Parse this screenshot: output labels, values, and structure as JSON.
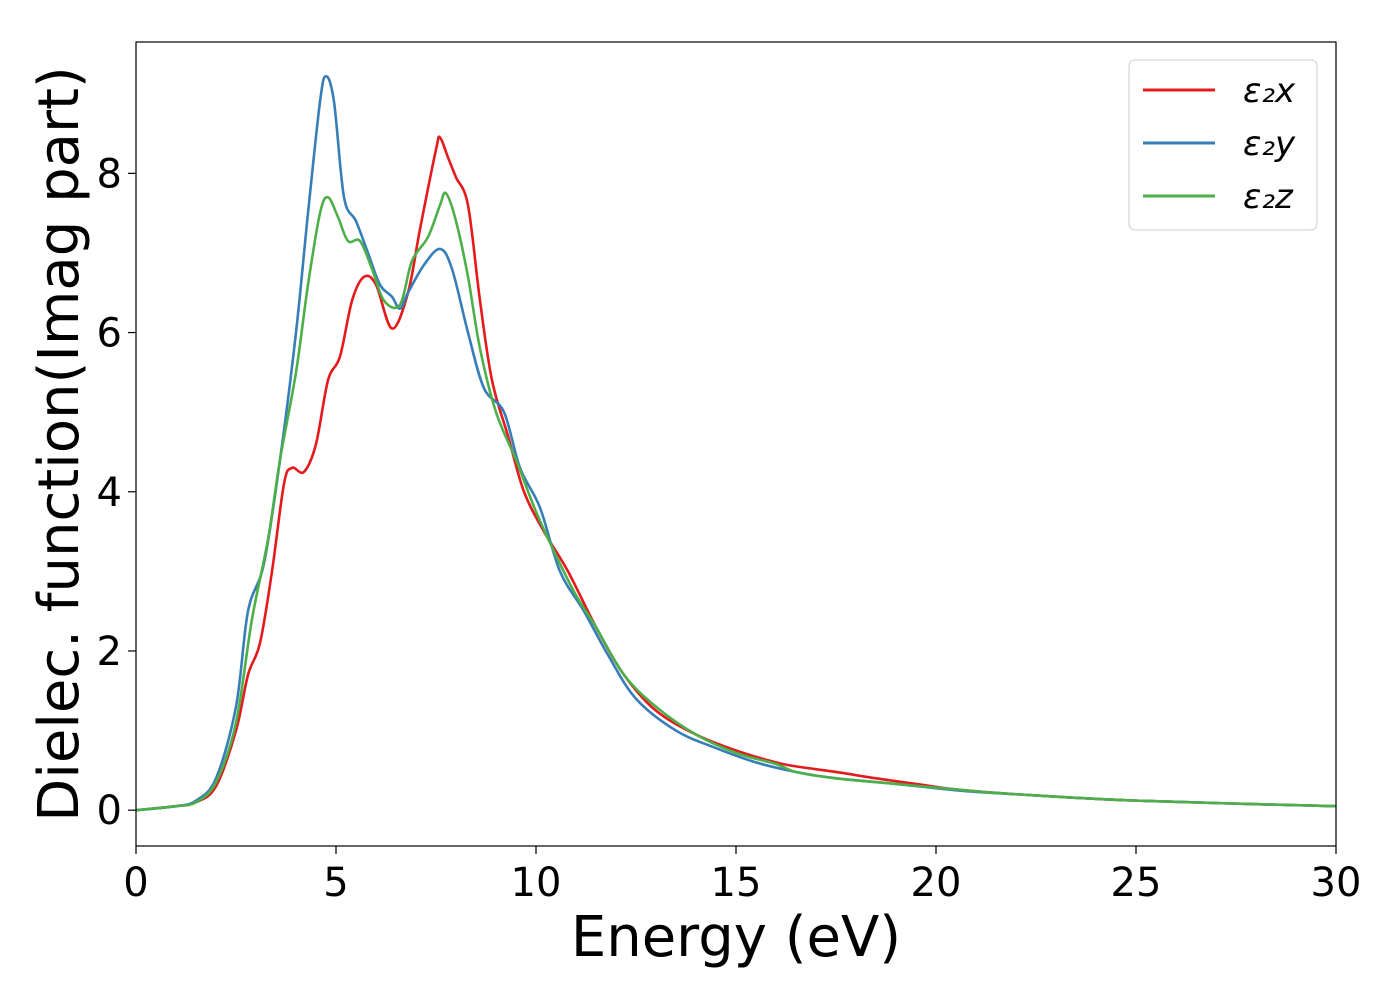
{
  "chart_data": {
    "type": "line",
    "xlabel": "Energy (eV)",
    "ylabel": "Dielec. function(Imag part)",
    "xlim": [
      0,
      30
    ],
    "ylim": [
      -0.45,
      9.65
    ],
    "xticks": [
      0,
      5,
      10,
      15,
      20,
      25,
      30
    ],
    "yticks": [
      0,
      2,
      4,
      6,
      8
    ],
    "grid": false,
    "legend_position": "top-right",
    "series": [
      {
        "name": "ε₂x",
        "color": "#e41a1c",
        "points": [
          [
            0,
            0
          ],
          [
            1,
            0.05
          ],
          [
            1.5,
            0.1
          ],
          [
            2,
            0.3
          ],
          [
            2.5,
            1.0
          ],
          [
            2.8,
            1.7
          ],
          [
            3.1,
            2.1
          ],
          [
            3.4,
            3.0
          ],
          [
            3.7,
            4.1
          ],
          [
            3.9,
            4.3
          ],
          [
            4.2,
            4.25
          ],
          [
            4.5,
            4.6
          ],
          [
            4.8,
            5.4
          ],
          [
            5.1,
            5.7
          ],
          [
            5.4,
            6.4
          ],
          [
            5.7,
            6.7
          ],
          [
            6.0,
            6.6
          ],
          [
            6.4,
            6.05
          ],
          [
            6.8,
            6.5
          ],
          [
            7.1,
            7.3
          ],
          [
            7.5,
            8.3
          ],
          [
            7.6,
            8.45
          ],
          [
            7.8,
            8.2
          ],
          [
            8.0,
            7.95
          ],
          [
            8.3,
            7.6
          ],
          [
            8.6,
            6.4
          ],
          [
            8.9,
            5.4
          ],
          [
            9.3,
            4.7
          ],
          [
            9.7,
            4.0
          ],
          [
            10.2,
            3.5
          ],
          [
            10.8,
            3.0
          ],
          [
            11.5,
            2.3
          ],
          [
            12.2,
            1.7
          ],
          [
            13,
            1.25
          ],
          [
            14,
            0.95
          ],
          [
            15,
            0.75
          ],
          [
            16,
            0.6
          ],
          [
            16.5,
            0.55
          ],
          [
            17.5,
            0.48
          ],
          [
            18.5,
            0.4
          ],
          [
            19.5,
            0.33
          ],
          [
            20.5,
            0.26
          ],
          [
            22,
            0.2
          ],
          [
            25,
            0.12
          ],
          [
            30,
            0.05
          ]
        ]
      },
      {
        "name": "ε₂y",
        "color": "#377eb8",
        "points": [
          [
            0,
            0
          ],
          [
            1,
            0.05
          ],
          [
            1.5,
            0.12
          ],
          [
            2,
            0.4
          ],
          [
            2.5,
            1.3
          ],
          [
            2.8,
            2.5
          ],
          [
            3.2,
            3.1
          ],
          [
            3.6,
            4.4
          ],
          [
            4.0,
            6.0
          ],
          [
            4.3,
            7.5
          ],
          [
            4.6,
            8.9
          ],
          [
            4.75,
            9.22
          ],
          [
            4.95,
            8.9
          ],
          [
            5.2,
            7.7
          ],
          [
            5.5,
            7.4
          ],
          [
            5.8,
            7.0
          ],
          [
            6.1,
            6.6
          ],
          [
            6.4,
            6.45
          ],
          [
            6.6,
            6.3
          ],
          [
            6.8,
            6.5
          ],
          [
            7.2,
            6.85
          ],
          [
            7.6,
            7.05
          ],
          [
            7.9,
            6.8
          ],
          [
            8.3,
            6.0
          ],
          [
            8.7,
            5.3
          ],
          [
            9.2,
            5.0
          ],
          [
            9.6,
            4.3
          ],
          [
            10.1,
            3.8
          ],
          [
            10.6,
            3.0
          ],
          [
            11.2,
            2.5
          ],
          [
            11.8,
            1.95
          ],
          [
            12.5,
            1.4
          ],
          [
            13.5,
            1.0
          ],
          [
            14.5,
            0.78
          ],
          [
            15.5,
            0.6
          ],
          [
            16.5,
            0.48
          ],
          [
            17.5,
            0.4
          ],
          [
            19,
            0.33
          ],
          [
            20.5,
            0.25
          ],
          [
            22,
            0.2
          ],
          [
            25,
            0.12
          ],
          [
            30,
            0.05
          ]
        ]
      },
      {
        "name": "ε₂z",
        "color": "#4daf4a",
        "points": [
          [
            0,
            0
          ],
          [
            1,
            0.05
          ],
          [
            1.5,
            0.1
          ],
          [
            2,
            0.35
          ],
          [
            2.5,
            1.1
          ],
          [
            2.9,
            2.4
          ],
          [
            3.3,
            3.4
          ],
          [
            3.6,
            4.4
          ],
          [
            4.0,
            5.5
          ],
          [
            4.3,
            6.6
          ],
          [
            4.6,
            7.5
          ],
          [
            4.8,
            7.7
          ],
          [
            5.05,
            7.45
          ],
          [
            5.3,
            7.15
          ],
          [
            5.6,
            7.15
          ],
          [
            5.9,
            6.8
          ],
          [
            6.2,
            6.4
          ],
          [
            6.6,
            6.35
          ],
          [
            6.9,
            6.9
          ],
          [
            7.3,
            7.2
          ],
          [
            7.6,
            7.6
          ],
          [
            7.75,
            7.75
          ],
          [
            8.0,
            7.4
          ],
          [
            8.3,
            6.7
          ],
          [
            8.6,
            5.8
          ],
          [
            9.0,
            5.0
          ],
          [
            9.5,
            4.4
          ],
          [
            10.0,
            3.75
          ],
          [
            10.5,
            3.2
          ],
          [
            11.0,
            2.7
          ],
          [
            11.5,
            2.3
          ],
          [
            12.2,
            1.7
          ],
          [
            13,
            1.3
          ],
          [
            14,
            0.95
          ],
          [
            15,
            0.72
          ],
          [
            16,
            0.58
          ],
          [
            16.5,
            0.48
          ],
          [
            17.5,
            0.4
          ],
          [
            19,
            0.33
          ],
          [
            20.5,
            0.26
          ],
          [
            22,
            0.2
          ],
          [
            25,
            0.12
          ],
          [
            30,
            0.05
          ]
        ]
      }
    ]
  }
}
